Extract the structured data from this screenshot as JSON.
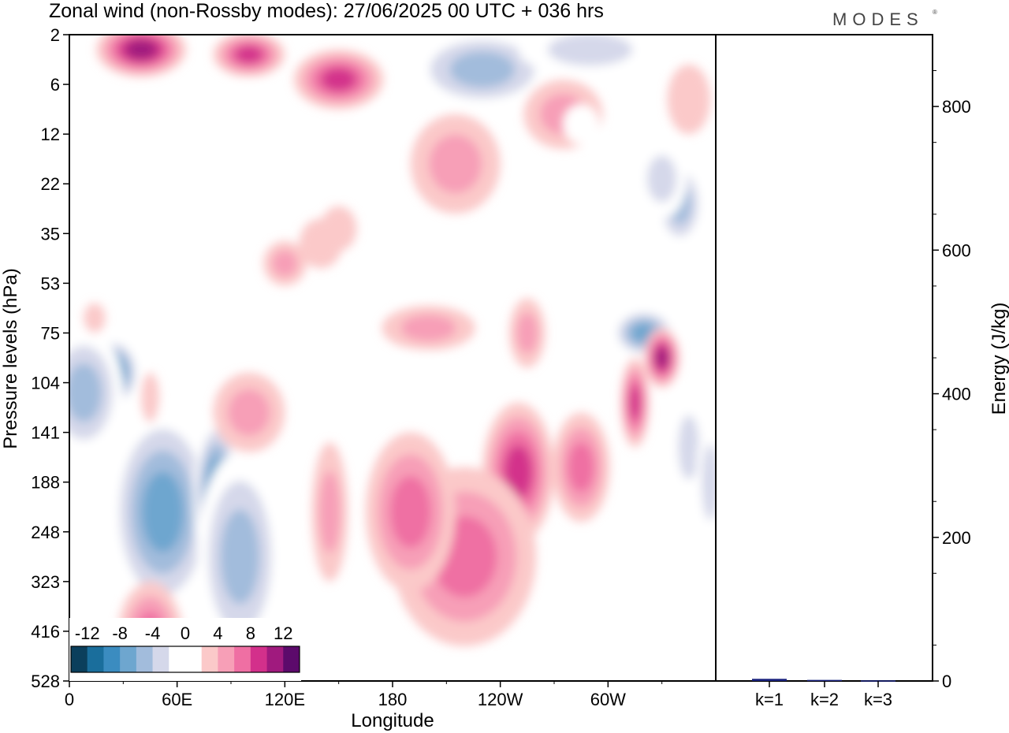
{
  "title": "Zonal wind (non-Rossby modes):  27/06/2025  00 UTC  + 036 hrs",
  "brand": "MODES",
  "chart_data": [
    {
      "type": "heatmap",
      "title": "Zonal wind (non-Rossby modes):  27/06/2025  00 UTC  + 036 hrs",
      "xlabel": "Longitude",
      "ylabel": "Pressure levels (hPa)",
      "x_ticks": [
        "0",
        "60E",
        "120E",
        "180",
        "120W",
        "60W"
      ],
      "x_tick_values": [
        0,
        60,
        120,
        180,
        240,
        300
      ],
      "xlim": [
        0,
        360
      ],
      "y_ticks": [
        "2",
        "6",
        "12",
        "22",
        "35",
        "53",
        "75",
        "104",
        "141",
        "188",
        "248",
        "323",
        "416",
        "528"
      ],
      "colorbar": {
        "labels": [
          "-12",
          "-8",
          "-4",
          "0",
          "4",
          "8",
          "12"
        ],
        "levels": [
          -14,
          -12,
          -10,
          -8,
          -6,
          -4,
          -2,
          2,
          4,
          6,
          8,
          10,
          12,
          14
        ],
        "colors": [
          "#0b3f5c",
          "#1a6e9c",
          "#3b8cc0",
          "#6ea6cf",
          "#a2bcdc",
          "#d5d8ea",
          "#ffffff",
          "#ffffff",
          "#fbc9c9",
          "#f79fb7",
          "#ef6fa3",
          "#d3308b",
          "#a01a7e",
          "#5c0a6b"
        ]
      },
      "features": [
        {
          "lon": 13,
          "lev": 7.4,
          "value": -12,
          "rx": 13,
          "ry": 0.8
        },
        {
          "lon": 25,
          "lev": 6.8,
          "value": -10,
          "rx": 14,
          "ry": 0.7
        },
        {
          "lon": 43,
          "lev": 9.2,
          "value": -12,
          "rx": 18,
          "ry": 1.4
        },
        {
          "lon": 52,
          "lev": 9.6,
          "value": -9,
          "rx": 30,
          "ry": 2.1
        },
        {
          "lon": 82,
          "lev": 9.3,
          "value": -10,
          "rx": 13,
          "ry": 1.6
        },
        {
          "lon": 95,
          "lev": 10.5,
          "value": -6,
          "rx": 24,
          "ry": 2.1
        },
        {
          "lon": 8,
          "lev": 7.2,
          "value": -6,
          "rx": 22,
          "ry": 1.3
        },
        {
          "lon": 150,
          "lev": 0.9,
          "value": 8,
          "rx": 25,
          "ry": 0.6
        },
        {
          "lon": 40,
          "lev": 0.3,
          "value": 10,
          "rx": 25,
          "ry": 0.55
        },
        {
          "lon": 100,
          "lev": 0.4,
          "value": 8,
          "rx": 20,
          "ry": 0.45
        },
        {
          "lon": 230,
          "lev": 0.7,
          "value": -7,
          "rx": 40,
          "ry": 0.8
        },
        {
          "lon": 290,
          "lev": 0.3,
          "value": -5,
          "rx": 40,
          "ry": 0.55
        },
        {
          "lon": 340,
          "lev": 3.4,
          "value": -6,
          "rx": 14,
          "ry": 0.9
        },
        {
          "lon": 320,
          "lev": 6,
          "value": -8,
          "rx": 18,
          "ry": 0.5
        },
        {
          "lon": 330,
          "lev": 6.5,
          "value": 10,
          "rx": 10,
          "ry": 0.6
        },
        {
          "lon": 315,
          "lev": 7.4,
          "value": 8,
          "rx": 8,
          "ry": 0.9
        },
        {
          "lon": 250,
          "lev": 8.8,
          "value": 8,
          "rx": 20,
          "ry": 1.4
        },
        {
          "lon": 285,
          "lev": 8.7,
          "value": 7,
          "rx": 16,
          "ry": 1.1
        },
        {
          "lon": 220,
          "lev": 10.5,
          "value": 6,
          "rx": 40,
          "ry": 1.8
        },
        {
          "lon": 190,
          "lev": 9.6,
          "value": 6,
          "rx": 25,
          "ry": 1.6
        },
        {
          "lon": 145,
          "lev": 9.6,
          "value": 4,
          "rx": 10,
          "ry": 1.4
        },
        {
          "lon": 215,
          "lev": 2.6,
          "value": 5,
          "rx": 25,
          "ry": 1
        },
        {
          "lon": 45,
          "lev": 12.1,
          "value": 6,
          "rx": 18,
          "ry": 1.1
        },
        {
          "lon": 100,
          "lev": 7.6,
          "value": 4,
          "rx": 20,
          "ry": 0.8
        },
        {
          "lon": 200,
          "lev": 5.9,
          "value": 4,
          "rx": 26,
          "ry": 0.45
        },
        {
          "lon": 120,
          "lev": 4.6,
          "value": 4,
          "rx": 12,
          "ry": 0.45
        },
        {
          "lon": 255,
          "lev": 6,
          "value": 4,
          "rx": 10,
          "ry": 0.7
        },
        {
          "lon": 275,
          "lev": 1.6,
          "value": 4,
          "rx": 22,
          "ry": 0.7
        },
        {
          "lon": 345,
          "lev": 1.3,
          "value": 3,
          "rx": 12,
          "ry": 0.7
        },
        {
          "lon": 140,
          "lev": 4.2,
          "value": 3,
          "rx": 12,
          "ry": 0.5
        },
        {
          "lon": 150,
          "lev": 3.9,
          "value": 3,
          "rx": 10,
          "ry": 0.45
        },
        {
          "lon": 14,
          "lev": 5.7,
          "value": 3,
          "rx": 6,
          "ry": 0.3
        },
        {
          "lon": 45,
          "lev": 7.3,
          "value": 3,
          "rx": 5,
          "ry": 0.5
        },
        {
          "lon": 100,
          "lev": 1.3,
          "value": -3,
          "rx": 8,
          "ry": 0.35
        },
        {
          "lon": 190,
          "lev": 4.8,
          "value": -3,
          "rx": 14,
          "ry": 0.4
        },
        {
          "lon": 195,
          "lev": 6.7,
          "value": -3,
          "rx": 10,
          "ry": 0.35
        },
        {
          "lon": 285,
          "lev": 1.8,
          "value": -3,
          "rx": 10,
          "ry": 0.4
        },
        {
          "lon": 330,
          "lev": 2.9,
          "value": -4,
          "rx": 14,
          "ry": 0.8
        },
        {
          "lon": 175,
          "lev": 1.8,
          "value": -3,
          "rx": 10,
          "ry": 0.3
        },
        {
          "lon": 255,
          "lev": 3.7,
          "value": -3,
          "rx": 8,
          "ry": 0.5
        },
        {
          "lon": 310,
          "lev": 12.2,
          "value": -3,
          "rx": 9,
          "ry": 0.8
        },
        {
          "lon": 240,
          "lev": 13.1,
          "value": -3,
          "rx": 12,
          "ry": 0.5
        },
        {
          "lon": 345,
          "lev": 8.3,
          "value": -4,
          "rx": 10,
          "ry": 1.1
        },
        {
          "lon": 357,
          "lev": 9,
          "value": -5,
          "rx": 8,
          "ry": 1.3
        }
      ]
    },
    {
      "type": "bar",
      "categories": [
        "k=1",
        "k=2",
        "k=3"
      ],
      "values": [
        3,
        1.5,
        0.8
      ],
      "ylabel": "Energy (J/kg)",
      "ylim": [
        0,
        900
      ],
      "y_ticks": [
        "0",
        "200",
        "400",
        "600",
        "800"
      ],
      "bar_color": "#1a237e"
    }
  ]
}
